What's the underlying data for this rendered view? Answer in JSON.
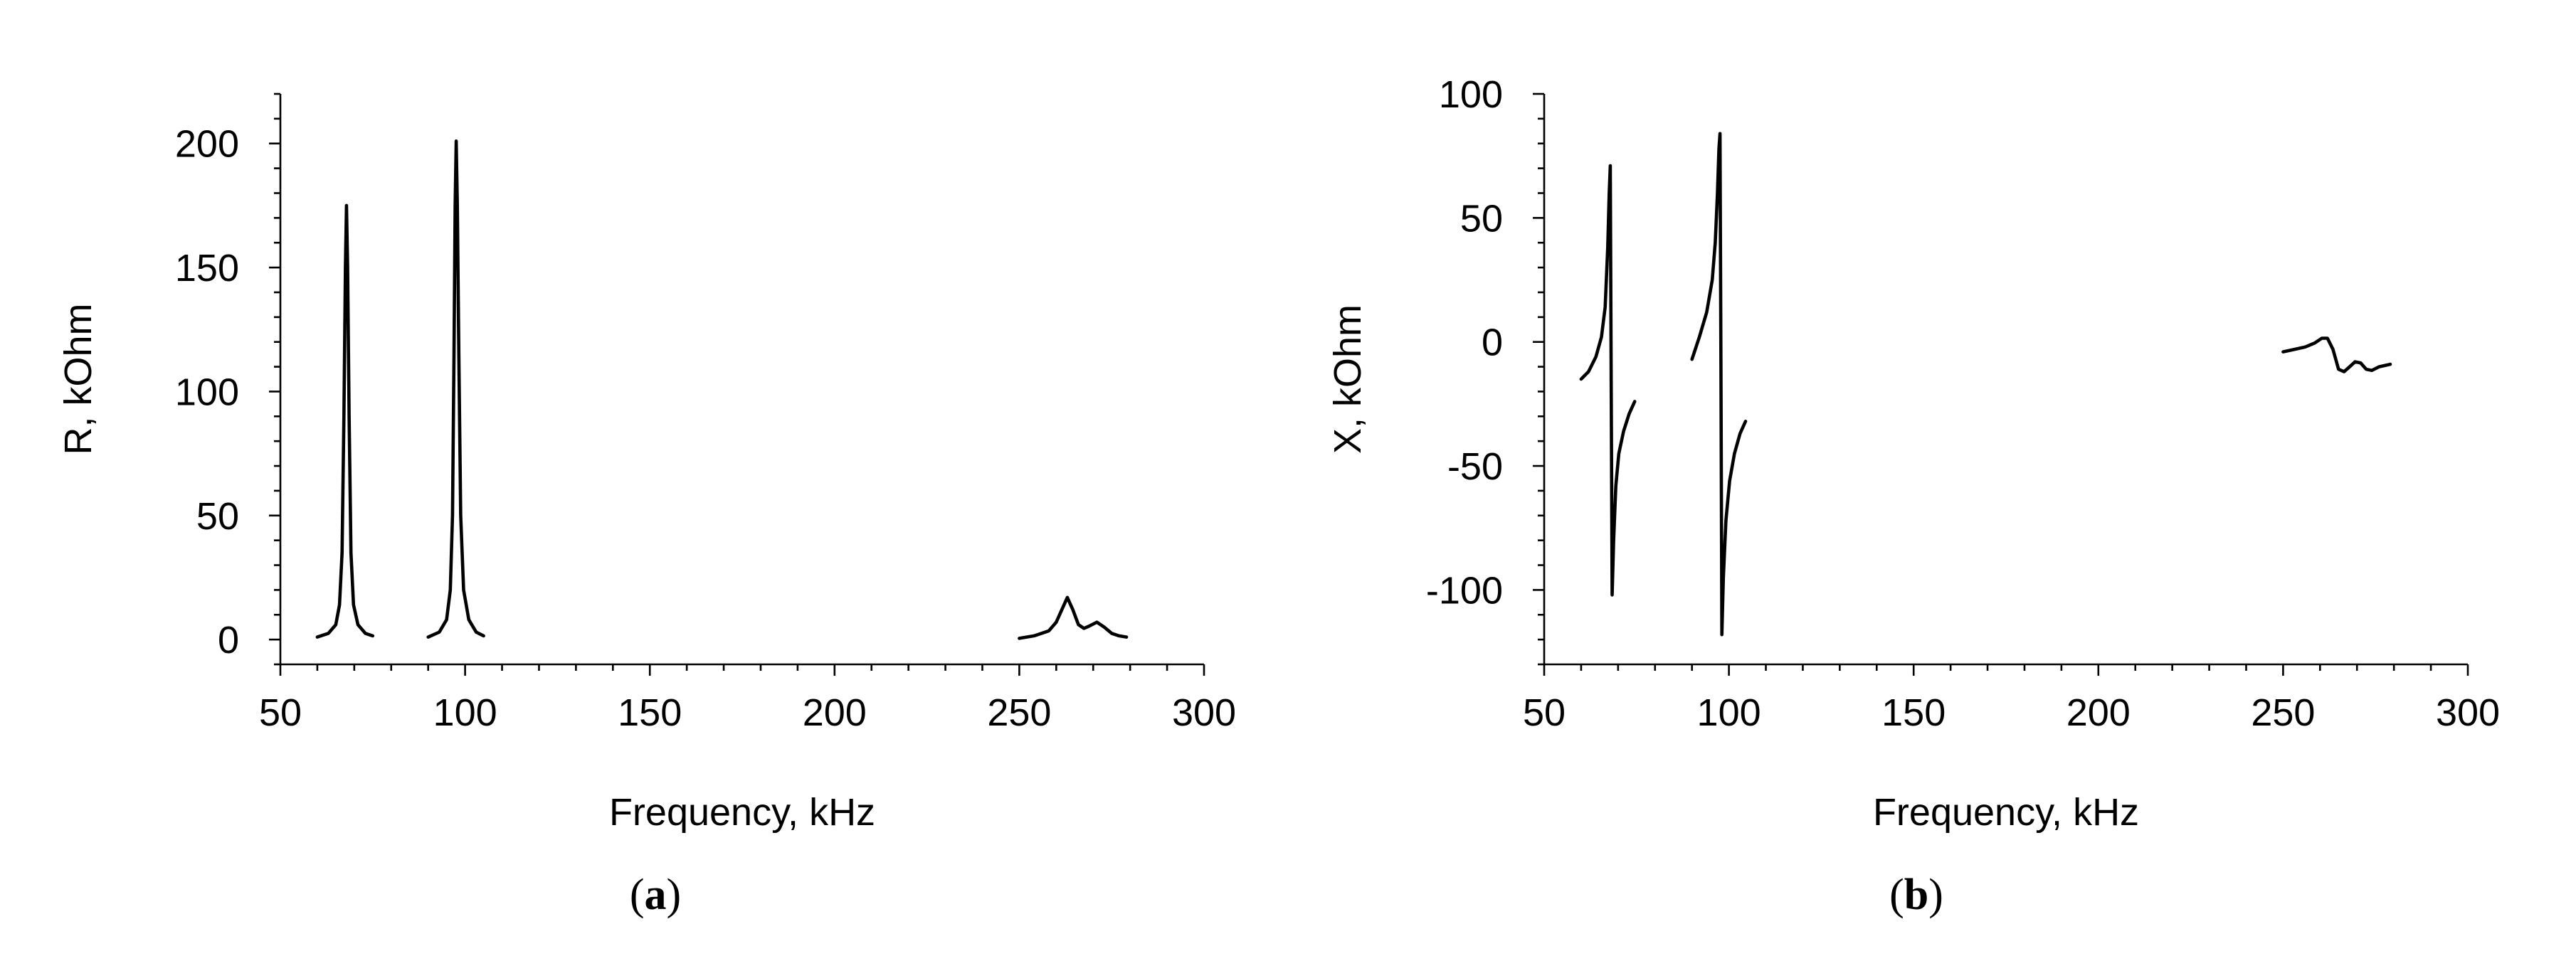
{
  "chart_data": [
    {
      "type": "line",
      "panel_label": "a",
      "xlabel": "Frequency, kHz",
      "ylabel": "R, kOhm",
      "xlim": [
        50,
        300
      ],
      "ylim": [
        -10,
        220
      ],
      "xticks": [
        50,
        100,
        150,
        200,
        250,
        300
      ],
      "yticks": [
        0,
        50,
        100,
        150,
        200
      ],
      "grid": false,
      "series": [
        {
          "x": [
            60,
            63,
            65,
            66,
            66.7,
            67.2,
            67.6,
            67.9,
            68.2,
            68.6,
            69.1,
            69.8,
            71,
            73,
            75
          ],
          "y": [
            1,
            2.5,
            6,
            14,
            35,
            90,
            150,
            175,
            150,
            90,
            35,
            14,
            6,
            2.5,
            1.5
          ]
        },
        {
          "x": [
            90,
            93,
            95,
            96,
            96.6,
            97,
            97.3,
            97.6,
            97.9,
            98.3,
            98.8,
            99.6,
            101,
            103,
            105
          ],
          "y": [
            1,
            3,
            8,
            20,
            50,
            115,
            175,
            201,
            175,
            115,
            50,
            20,
            8,
            3,
            1.5
          ]
        },
        {
          "x": [
            250,
            254,
            258,
            260,
            261.5,
            263,
            264.5,
            266,
            267.5,
            269,
            271,
            273,
            275,
            277,
            279
          ],
          "y": [
            0.5,
            1.5,
            3.5,
            7,
            12,
            17,
            12,
            6,
            4.5,
            5.5,
            7,
            5,
            2.5,
            1.5,
            1
          ]
        }
      ]
    },
    {
      "type": "line",
      "panel_label": "b",
      "xlabel": "Frequency, kHz",
      "ylabel": "X, kOhm",
      "xlim": [
        50,
        300
      ],
      "ylim": [
        -130,
        100
      ],
      "xticks": [
        50,
        100,
        150,
        200,
        250,
        300
      ],
      "yticks": [
        -100,
        -50,
        0,
        50,
        100
      ],
      "grid": false,
      "series": [
        {
          "x": [
            60,
            62,
            64,
            65.5,
            66.5,
            67.2,
            67.6,
            67.9,
            68.1,
            68.4,
            68.8,
            69.4,
            70.2,
            71.5,
            73,
            74.5
          ],
          "y": [
            -15,
            -12,
            -6,
            2,
            14,
            38,
            60,
            71,
            -5,
            -102,
            -80,
            -58,
            -45,
            -36,
            -29,
            -24
          ]
        },
        {
          "x": [
            90,
            92,
            94,
            95.5,
            96.3,
            96.9,
            97.3,
            97.6,
            97.85,
            98.1,
            98.5,
            99.2,
            100.2,
            101.5,
            103,
            104.5
          ],
          "y": [
            -7,
            2,
            12,
            25,
            40,
            60,
            78,
            84,
            -10,
            -118,
            -95,
            -72,
            -56,
            -45,
            -37,
            -32
          ]
        },
        {
          "x": [
            250,
            253,
            256,
            258.5,
            260.5,
            262,
            263.5,
            265,
            266.5,
            268,
            269.5,
            271,
            272.5,
            274,
            276,
            279
          ],
          "y": [
            -4,
            -3,
            -2,
            -0.5,
            1.5,
            1.5,
            -3,
            -11,
            -12,
            -10,
            -8,
            -8.5,
            -11,
            -11.5,
            -10,
            -9
          ]
        }
      ]
    }
  ]
}
